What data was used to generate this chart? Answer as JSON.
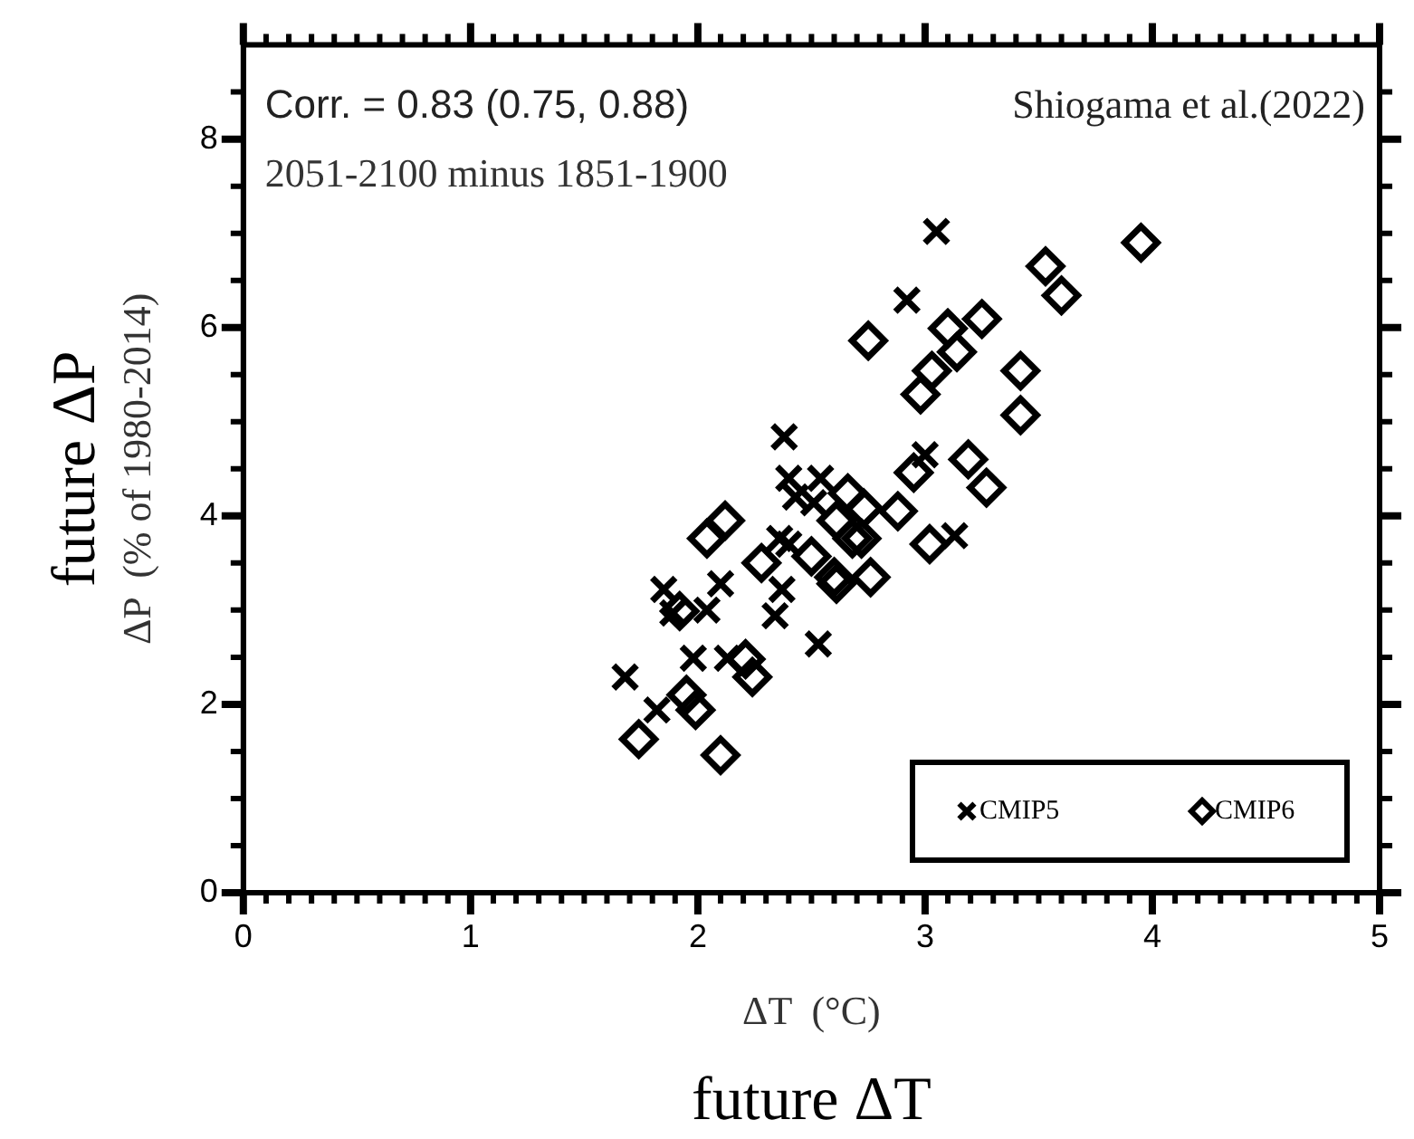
{
  "chart_data": {
    "type": "scatter",
    "xlabel": "ΔT  (°C)",
    "ylabel": "ΔP  (% of 1980-2014)",
    "annotations": [
      "Corr. = 0.83 (0.75, 0.88)",
      "2051-2100 minus 1851-1900",
      "Shiogama et al.(2022)",
      "future ΔT",
      "future ΔP"
    ],
    "xlim": [
      0,
      5
    ],
    "ylim": [
      0,
      9
    ],
    "xticks": [
      0,
      {
        "value": 0.1,
        "label": null
      },
      {
        "value": 0.2,
        "label": null
      },
      {
        "value": 0.3,
        "label": null
      },
      {
        "value": 0.4,
        "label": null
      },
      {
        "value": 0.5,
        "label": null
      },
      {
        "value": 0.6,
        "label": null
      },
      {
        "value": 0.7,
        "label": null
      },
      {
        "value": 0.8,
        "label": null
      },
      {
        "value": 0.9,
        "label": null
      },
      1,
      {
        "value": 1.1,
        "label": null
      },
      {
        "value": 1.2,
        "label": null
      },
      {
        "value": 1.3,
        "label": null
      },
      {
        "value": 1.4,
        "label": null
      },
      {
        "value": 1.5,
        "label": null
      },
      {
        "value": 1.6,
        "label": null
      },
      {
        "value": 1.7,
        "label": null
      },
      {
        "value": 1.8,
        "label": null
      },
      {
        "value": 1.9,
        "label": null
      },
      2,
      {
        "value": 2.1,
        "label": null
      },
      {
        "value": 2.2,
        "label": null
      },
      {
        "value": 2.3,
        "label": null
      },
      {
        "value": 2.4,
        "label": null
      },
      {
        "value": 2.5,
        "label": null
      },
      {
        "value": 2.6,
        "label": null
      },
      {
        "value": 2.7,
        "label": null
      },
      {
        "value": 2.8,
        "label": null
      },
      {
        "value": 2.9,
        "label": null
      },
      3,
      {
        "value": 3.1,
        "label": null
      },
      {
        "value": 3.2,
        "label": null
      },
      {
        "value": 3.3,
        "label": null
      },
      {
        "value": 3.4,
        "label": null
      },
      {
        "value": 3.5,
        "label": null
      },
      {
        "value": 3.6,
        "label": null
      },
      {
        "value": 3.7,
        "label": null
      },
      {
        "value": 3.8,
        "label": null
      },
      {
        "value": 3.9,
        "label": null
      },
      4,
      {
        "value": 4.1,
        "label": null
      },
      {
        "value": 4.2,
        "label": null
      },
      {
        "value": 4.3,
        "label": null
      },
      {
        "value": 4.4,
        "label": null
      },
      {
        "value": 4.5,
        "label": null
      },
      {
        "value": 4.6,
        "label": null
      },
      {
        "value": 4.7,
        "label": null
      },
      {
        "value": 4.8,
        "label": null
      },
      {
        "value": 4.9,
        "label": null
      },
      5
    ],
    "yticks": [
      0,
      {
        "value": 0.5,
        "label": null
      },
      {
        "value": 1,
        "label": null
      },
      {
        "value": 1.5,
        "label": null
      },
      2,
      {
        "value": 2.5,
        "label": null
      },
      {
        "value": 3,
        "label": null
      },
      {
        "value": 3.5,
        "label": null
      },
      4,
      {
        "value": 4.5,
        "label": null
      },
      {
        "value": 5,
        "label": null
      },
      {
        "value": 5.5,
        "label": null
      },
      6,
      {
        "value": 6.5,
        "label": null
      },
      {
        "value": 7,
        "label": null
      },
      {
        "value": 7.5,
        "label": null
      },
      8,
      {
        "value": 8.5,
        "label": null
      }
    ],
    "legend": "bottom right",
    "series": [
      {
        "name": "CMIP5",
        "color": "#000000",
        "marker": "cross",
        "x": [
          1.68,
          1.82,
          1.85,
          1.89,
          1.98,
          2.04,
          2.1,
          2.13,
          2.34,
          2.37,
          2.53,
          2.38,
          2.36,
          2.4,
          2.4,
          2.47,
          2.54,
          2.43,
          2.51,
          2.95,
          3.0,
          3.13,
          2.92,
          3.05
        ],
        "values": [
          2.29,
          1.94,
          3.22,
          2.97,
          2.49,
          3.0,
          3.28,
          2.49,
          2.94,
          3.22,
          2.64,
          4.84,
          3.76,
          3.7,
          4.4,
          null,
          4.4,
          4.2,
          4.14,
          null,
          4.65,
          3.79,
          6.29,
          7.02
        ]
      },
      {
        "name": "CMIP6",
        "color": "#000000",
        "marker": "diamond",
        "x": [
          1.74,
          1.95,
          1.99,
          2.1,
          2.21,
          2.24,
          1.92,
          2.04,
          2.12,
          2.28,
          2.5,
          2.6,
          2.61,
          2.68,
          2.76,
          2.61,
          2.72,
          2.73,
          2.66,
          2.88,
          2.95,
          3.02,
          3.19,
          3.27,
          2.75,
          2.98,
          3.03,
          3.14,
          3.1,
          3.25,
          3.42,
          3.42,
          3.53,
          3.6,
          3.95
        ],
        "values": [
          1.63,
          2.1,
          1.94,
          1.46,
          2.48,
          2.29,
          2.99,
          3.76,
          3.95,
          3.5,
          3.57,
          3.35,
          3.95,
          3.76,
          3.35,
          3.28,
          3.76,
          4.08,
          4.24,
          4.05,
          4.46,
          3.7,
          4.6,
          4.3,
          5.86,
          5.29,
          5.54,
          5.74,
          5.99,
          6.09,
          5.54,
          5.07,
          6.65,
          6.34,
          6.9
        ]
      }
    ]
  }
}
